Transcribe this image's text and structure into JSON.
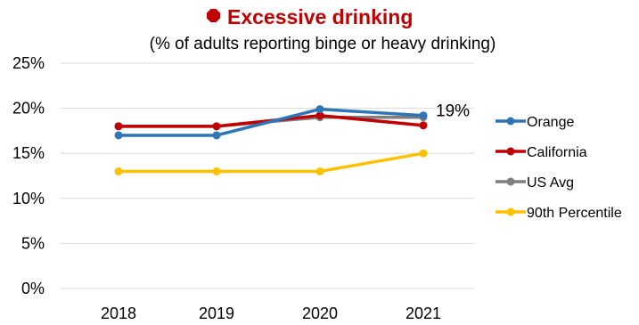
{
  "chart_data": {
    "type": "line",
    "title": "Excessive drinking",
    "subtitle": "(% of adults reporting binge or heavy drinking)",
    "categories": [
      "2018",
      "2019",
      "2020",
      "2021"
    ],
    "ylim": [
      0,
      25
    ],
    "yticks": [
      0,
      5,
      10,
      15,
      20,
      25
    ],
    "ytick_labels": [
      "0%",
      "5%",
      "10%",
      "15%",
      "20%",
      "25%"
    ],
    "xlabel": "",
    "ylabel": "",
    "grid": true,
    "legend_position": "right",
    "series": [
      {
        "name": "Orange",
        "color": "#2E75B6",
        "values": [
          17,
          17,
          19.9,
          19.2
        ]
      },
      {
        "name": "California",
        "color": "#C00000",
        "values": [
          18,
          18,
          19.2,
          18.1
        ]
      },
      {
        "name": "US Avg",
        "color": "#7F7F7F",
        "values": [
          18,
          18,
          19,
          19
        ]
      },
      {
        "name": "90th Percentile",
        "color": "#FFC000",
        "values": [
          13,
          13,
          13,
          15
        ]
      }
    ],
    "annotations": [
      {
        "text": "19%",
        "series": "Orange",
        "category": "2021"
      }
    ],
    "title_color": "#C00000",
    "title_icon": "stop-sign-icon"
  }
}
